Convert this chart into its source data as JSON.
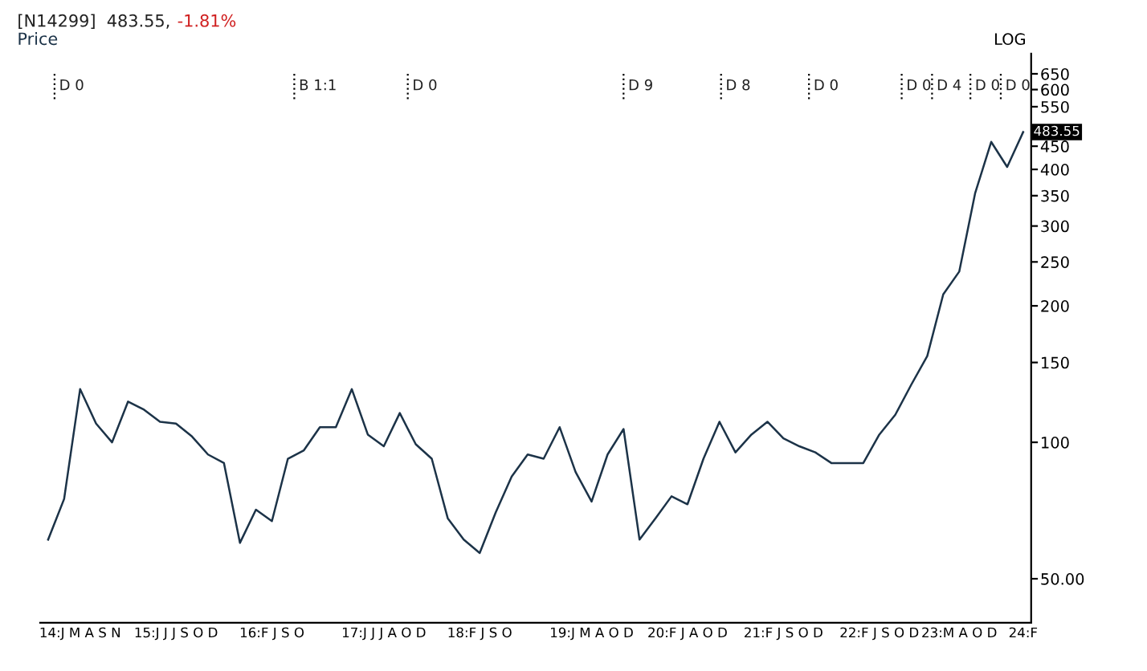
{
  "chart_data": {
    "type": "line",
    "title": "[N14299]  483.55,",
    "subtitle": "-1.81%",
    "log": true,
    "legend": "top left",
    "grid": false,
    "line_style": "solid",
    "marker": "none",
    "ylim": [
      40,
      720
    ],
    "yticks": [
      {
        "value": 50,
        "label": "50.00"
      },
      100,
      150,
      200,
      250,
      300,
      350,
      400,
      450,
      {
        "value": 500,
        "label": null
      },
      550,
      600,
      650
    ],
    "categories": [
      null,
      null,
      "14:J M A S N",
      null,
      null,
      null,
      null,
      null,
      "15:J J J S O D",
      null,
      null,
      null,
      null,
      null,
      "16:F J S O",
      null,
      null,
      null,
      null,
      null,
      null,
      "17:J J J A O D",
      null,
      null,
      null,
      null,
      null,
      "18:F J S O",
      null,
      null,
      null,
      null,
      null,
      null,
      "19:J M A O D",
      null,
      null,
      null,
      null,
      null,
      "20:F J A O D",
      null,
      null,
      null,
      null,
      null,
      "21:F J S O D",
      null,
      null,
      null,
      null,
      null,
      "22:F J S O D",
      null,
      null,
      null,
      null,
      "23:M A O D",
      null,
      null,
      null,
      "24:F"
    ],
    "annotations": [
      "LOG",
      "483.55",
      "D 0",
      "B 1:1",
      "D 0",
      "D 9",
      "D 8",
      "D 0",
      "D 0",
      "D 4",
      "D 0",
      "D 0"
    ],
    "series": [
      {
        "name": "Price",
        "color": "#1c3348",
        "values": [
          61,
          75,
          131,
          110,
          100,
          123,
          118,
          111,
          110,
          103,
          94,
          90,
          60,
          71,
          67,
          92,
          96,
          108,
          108,
          131,
          104,
          98,
          116,
          99,
          92,
          68,
          61,
          57,
          70,
          84,
          94,
          92,
          108,
          86,
          74,
          94,
          107,
          61,
          68,
          76,
          73,
          92,
          111,
          95,
          104,
          111,
          102,
          98,
          95,
          90,
          90,
          90,
          104,
          115,
          134,
          155,
          212,
          238,
          355,
          460,
          405,
          483.55
        ]
      }
    ]
  }
}
